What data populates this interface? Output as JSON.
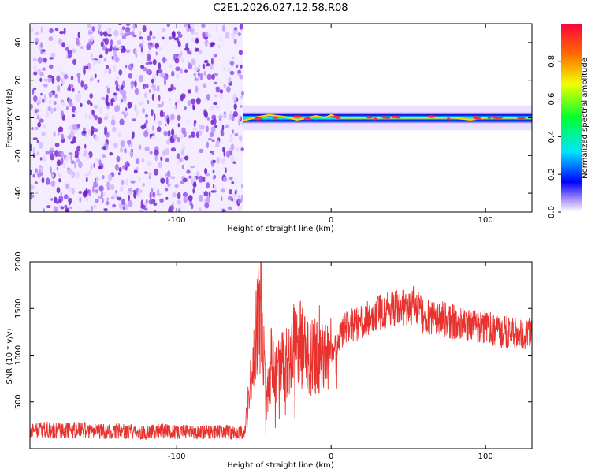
{
  "title": "C2E1.2026.027.12.58.R08",
  "colors": {
    "snr_line": "#e8322e",
    "spectrogram_noise": "#7a2fd0"
  },
  "chart_data": [
    {
      "type": "heatmap",
      "xlabel": "Height of straight line (km)",
      "ylabel": "Frequency (Hz)",
      "xlim": [
        -195,
        130
      ],
      "ylim": [
        -50,
        50
      ],
      "x_ticks": [
        -100,
        0,
        100
      ],
      "y_ticks": [
        -40,
        -20,
        0,
        20,
        40
      ],
      "grid": false,
      "colorscale": "rainbow",
      "colorbar": {
        "label": "Normalized spectral amplitude",
        "range": [
          0,
          1
        ],
        "ticks": [
          0.0,
          0.2,
          0.4,
          0.6,
          0.8
        ]
      },
      "noise_region_x": [
        -195,
        -57
      ],
      "signal_band": {
        "x_range": [
          -57,
          130
        ],
        "center_hz": 0,
        "halfwidth_hz": 3,
        "ridge": [
          [
            -57,
            -1.5
          ],
          [
            -50,
            0
          ],
          [
            -40,
            1.5
          ],
          [
            -30,
            0.5
          ],
          [
            -22,
            -1
          ],
          [
            -15,
            0
          ],
          [
            -10,
            1
          ],
          [
            -4,
            0
          ],
          [
            0,
            1.5
          ],
          [
            5,
            0
          ],
          [
            50,
            0
          ],
          [
            80,
            0
          ],
          [
            90,
            -1
          ],
          [
            100,
            0
          ],
          [
            130,
            0
          ]
        ]
      }
    },
    {
      "type": "line",
      "xlabel": "Height of straight line (km)",
      "ylabel": "SNR (10 * v/v)",
      "xlim": [
        -195,
        130
      ],
      "ylim": [
        0,
        2000
      ],
      "x_ticks": [
        -100,
        0,
        100
      ],
      "y_ticks": [
        500,
        1000,
        1500,
        2000
      ],
      "grid": false,
      "series": [
        {
          "x": [
            -195,
            -185,
            -175,
            -160,
            -150,
            -140,
            -130,
            -120,
            -110,
            -100,
            -90,
            -80,
            -70,
            -60,
            -56,
            -52,
            -48,
            -46,
            -45,
            -42,
            -38,
            -35,
            -30,
            -25,
            -22,
            -20,
            -15,
            -10,
            -5,
            0,
            5,
            10,
            20,
            30,
            40,
            50,
            55,
            60,
            70,
            80,
            90,
            100,
            110,
            120,
            125,
            130
          ],
          "y": [
            180,
            200,
            190,
            200,
            180,
            190,
            180,
            170,
            190,
            180,
            170,
            175,
            180,
            160,
            180,
            700,
            1300,
            1950,
            1400,
            500,
            1000,
            800,
            900,
            1100,
            1000,
            1150,
            950,
            1050,
            900,
            1000,
            1200,
            1300,
            1350,
            1450,
            1500,
            1500,
            1550,
            1400,
            1400,
            1350,
            1300,
            1300,
            1250,
            1250,
            1200,
            1250
          ]
        }
      ]
    }
  ]
}
